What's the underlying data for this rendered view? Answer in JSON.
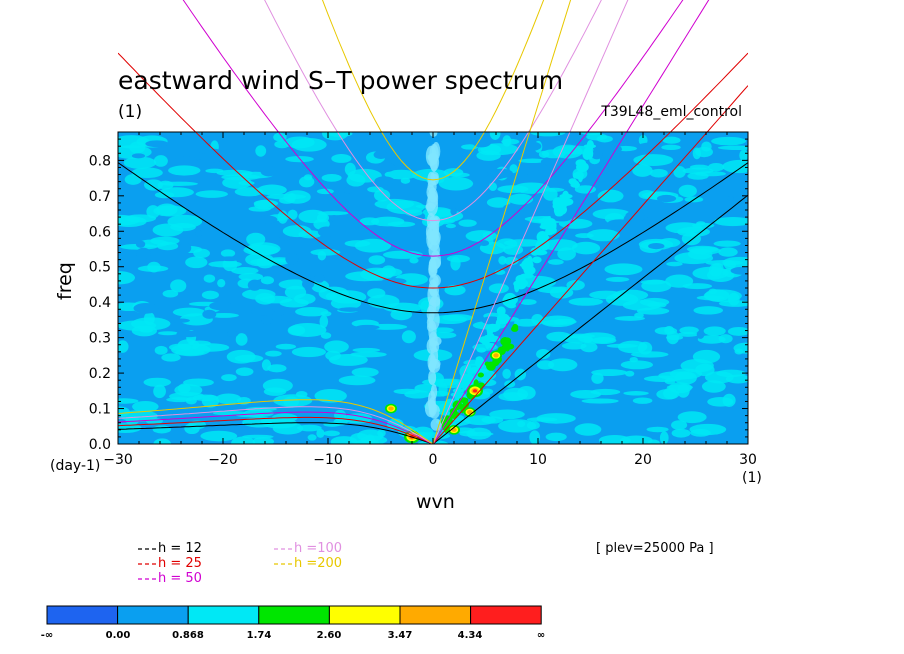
{
  "title": "eastward wind S–T power spectrum",
  "unit_label": "(1)",
  "experiment": "T39L48_eml_control",
  "level_note": "[ plev=25000 Pa ]",
  "colors": {
    "h12": "#000000",
    "h25": "#e00000",
    "h50": "#d000d0",
    "h100": "#e090e0",
    "h200": "#e8c800",
    "fill_levels": [
      "#1e64f0",
      "#0a9ff0",
      "#00e8f5",
      "#00e600",
      "#ffff00",
      "#ffaa00",
      "#ff1e1e"
    ]
  },
  "legend": [
    {
      "key": "h12",
      "label": "h = 12"
    },
    {
      "key": "h25",
      "label": "h = 25"
    },
    {
      "key": "h50",
      "label": "h = 50"
    },
    {
      "key": "h100",
      "label": "h =100"
    },
    {
      "key": "h200",
      "label": "h =200"
    }
  ],
  "colorbar": {
    "labels": [
      "-∞",
      "0.00",
      "0.868",
      "1.74",
      "2.60",
      "3.47",
      "4.34",
      "∞"
    ]
  },
  "chart_data": {
    "type": "heatmap",
    "title": "eastward wind S–T power spectrum",
    "xlabel": "wvn",
    "ylabel": "freq",
    "x_unit": "(1)",
    "y_unit": "(day-1)",
    "xlim": [
      -30,
      30
    ],
    "ylim": [
      0,
      0.88
    ],
    "xticks": [
      -30,
      -20,
      -10,
      0,
      10,
      20,
      30
    ],
    "yticks": [
      0.0,
      0.1,
      0.2,
      0.3,
      0.4,
      0.5,
      0.6,
      0.7,
      0.8
    ],
    "tick_labels_x": [
      "−30",
      "−20",
      "−10",
      "0",
      "10",
      "20",
      "30"
    ],
    "tick_labels_y": [
      "0.0",
      "0.1",
      "0.2",
      "0.3",
      "0.4",
      "0.5",
      "0.6",
      "0.7",
      "0.8"
    ],
    "color_levels": [
      0.0,
      0.868,
      1.74,
      2.6,
      3.47,
      4.34
    ],
    "dispersion_curves": {
      "equivalent_depths_m": [
        12,
        25,
        50,
        100,
        200
      ],
      "kelvin_slopes": {
        "h12": 0.0234,
        "h25": 0.0337,
        "h50": 0.0477,
        "h100": 0.0675,
        "h200": 0.0956
      },
      "inertia_gravity_min_freq": {
        "h12": 0.37,
        "h25": 0.44,
        "h50": 0.53,
        "h100": 0.63,
        "h200": 0.745
      },
      "rossby_peak_freq": {
        "h12": 0.06,
        "h25": 0.075,
        "h50": 0.09,
        "h100": 0.105,
        "h200": 0.125
      }
    },
    "hotspots": [
      {
        "x": 4,
        "y": 0.15,
        "level": 6
      },
      {
        "x": 6,
        "y": 0.25,
        "level": 4
      },
      {
        "x": 3.5,
        "y": 0.09,
        "level": 4
      },
      {
        "x": -2,
        "y": 0.02,
        "level": 6
      },
      {
        "x": -4,
        "y": 0.1,
        "level": 4
      },
      {
        "x": 2,
        "y": 0.04,
        "level": 4
      }
    ]
  }
}
